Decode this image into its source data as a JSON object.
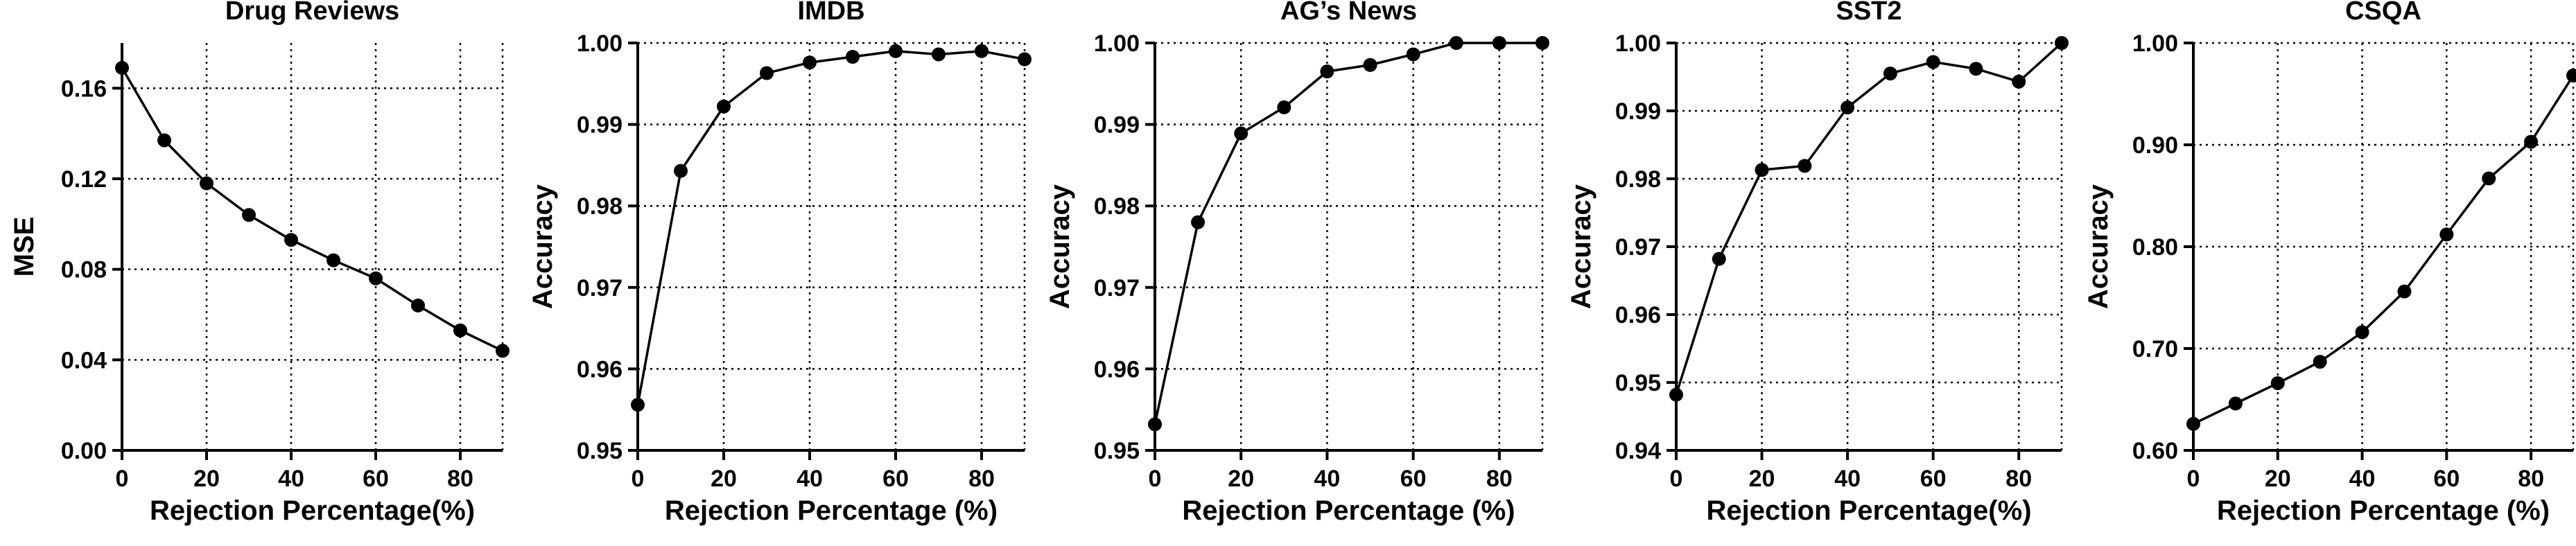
{
  "chart_data": [
    {
      "type": "line",
      "title": "Drug  Reviews",
      "xlabel": "Rejection   Percentage(%)",
      "ylabel": "MSE",
      "x": [
        0,
        10,
        20,
        30,
        40,
        50,
        60,
        70,
        80,
        90
      ],
      "series": [
        {
          "values": [
            0.169,
            0.137,
            0.118,
            0.104,
            0.093,
            0.084,
            0.076,
            0.064,
            0.053,
            0.044
          ]
        }
      ],
      "xlim": [
        0,
        90
      ],
      "ylim": [
        0,
        0.18
      ],
      "xticks": [
        0,
        20,
        40,
        60,
        80
      ],
      "xtick_labels": [
        "0",
        "20",
        "40",
        "60",
        "80"
      ],
      "yticks": [
        0,
        0.04,
        0.08,
        0.12,
        0.16
      ],
      "ytick_labels": [
        "0.00",
        "0.04",
        "0.08",
        "0.12",
        "0.16"
      ],
      "grid": true,
      "colors": {
        "line": "#000000",
        "marker": "#000000",
        "grid": "#000000"
      }
    },
    {
      "type": "line",
      "title": "IMDB",
      "xlabel": "Rejection Percentage (%)",
      "ylabel": "Accuracy",
      "x": [
        0,
        10,
        20,
        30,
        40,
        50,
        60,
        70,
        80,
        90
      ],
      "series": [
        {
          "values": [
            0.9556,
            0.9843,
            0.9922,
            0.9963,
            0.9976,
            0.9983,
            0.999,
            0.9986,
            0.999,
            0.998
          ]
        }
      ],
      "xlim": [
        0,
        90
      ],
      "ylim": [
        0.95,
        1.0
      ],
      "xticks": [
        0,
        20,
        40,
        60,
        80
      ],
      "xtick_labels": [
        "0",
        "20",
        "40",
        "60",
        "80"
      ],
      "yticks": [
        0.95,
        0.96,
        0.97,
        0.98,
        0.99,
        1.0
      ],
      "ytick_labels": [
        "0.95",
        "0.96",
        "0.97",
        "0.98",
        "0.99",
        "1.00"
      ],
      "grid": true,
      "colors": {
        "line": "#000000",
        "marker": "#000000",
        "grid": "#000000"
      }
    },
    {
      "type": "line",
      "title": "AG’s News",
      "xlabel": "Rejection Percentage (%)",
      "ylabel": "Accuracy",
      "x": [
        0,
        10,
        20,
        30,
        40,
        50,
        60,
        70,
        80,
        90
      ],
      "series": [
        {
          "values": [
            0.9532,
            0.978,
            0.9889,
            0.9921,
            0.9965,
            0.9973,
            0.9986,
            1.0,
            1.0,
            1.0
          ]
        }
      ],
      "xlim": [
        0,
        90
      ],
      "ylim": [
        0.95,
        1.0
      ],
      "xticks": [
        0,
        20,
        40,
        60,
        80
      ],
      "xtick_labels": [
        "0",
        "20",
        "40",
        "60",
        "80"
      ],
      "yticks": [
        0.95,
        0.96,
        0.97,
        0.98,
        0.99,
        1.0
      ],
      "ytick_labels": [
        "0.95",
        "0.96",
        "0.97",
        "0.98",
        "0.99",
        "1.00"
      ],
      "grid": true,
      "colors": {
        "line": "#000000",
        "marker": "#000000",
        "grid": "#000000"
      }
    },
    {
      "type": "line",
      "title": "SST2",
      "xlabel": "Rejection   Percentage(%)",
      "ylabel": "Accuracy",
      "x": [
        0,
        10,
        20,
        30,
        40,
        50,
        60,
        70,
        80,
        90
      ],
      "series": [
        {
          "values": [
            0.9482,
            0.9682,
            0.9813,
            0.9819,
            0.9905,
            0.9955,
            0.9972,
            0.9962,
            0.9943,
            1.0
          ]
        }
      ],
      "xlim": [
        0,
        90
      ],
      "ylim": [
        0.94,
        1.0
      ],
      "xticks": [
        0,
        20,
        40,
        60,
        80
      ],
      "xtick_labels": [
        "0",
        "20",
        "40",
        "60",
        "80"
      ],
      "yticks": [
        0.94,
        0.95,
        0.96,
        0.97,
        0.98,
        0.99,
        1.0
      ],
      "ytick_labels": [
        "0.94",
        "0.95",
        "0.96",
        "0.97",
        "0.98",
        "0.99",
        "1.00"
      ],
      "grid": true,
      "colors": {
        "line": "#000000",
        "marker": "#000000",
        "grid": "#000000"
      }
    },
    {
      "type": "line",
      "title": "CSQA",
      "xlabel": "Rejection Percentage (%)",
      "ylabel": "Accuracy",
      "x": [
        0,
        10,
        20,
        30,
        40,
        50,
        60,
        70,
        80,
        90
      ],
      "series": [
        {
          "values": [
            0.626,
            0.646,
            0.666,
            0.687,
            0.716,
            0.756,
            0.812,
            0.867,
            0.903,
            0.968
          ]
        }
      ],
      "xlim": [
        0,
        90
      ],
      "ylim": [
        0.6,
        1.0
      ],
      "xticks": [
        0,
        20,
        40,
        60,
        80
      ],
      "xtick_labels": [
        "0",
        "20",
        "40",
        "60",
        "80"
      ],
      "yticks": [
        0.6,
        0.7,
        0.8,
        0.9,
        1.0
      ],
      "ytick_labels": [
        "0.60",
        "0.70",
        "0.80",
        "0.90",
        "1.00"
      ],
      "grid": true,
      "colors": {
        "line": "#000000",
        "marker": "#000000",
        "grid": "#000000"
      }
    }
  ]
}
